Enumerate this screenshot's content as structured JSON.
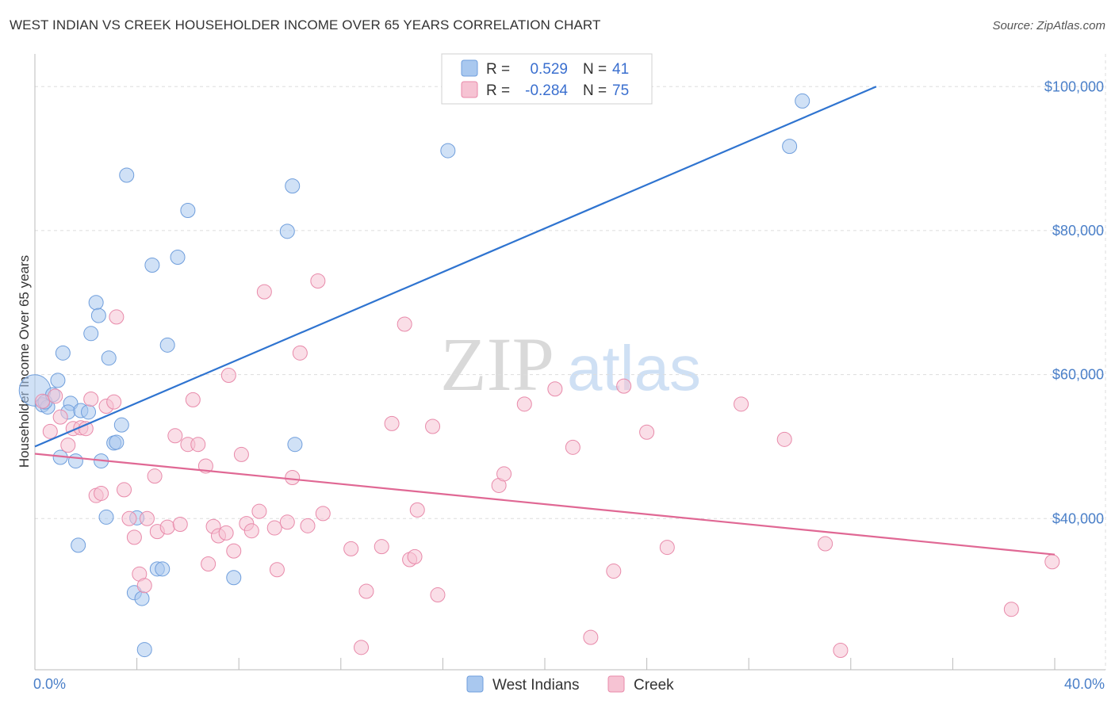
{
  "title": "WEST INDIAN VS CREEK HOUSEHOLDER INCOME OVER 65 YEARS CORRELATION CHART",
  "source": "Source: ZipAtlas.com",
  "watermark": {
    "zip": "ZIP",
    "atlas": "atlas"
  },
  "colors": {
    "blue_fill": "#a9c8ef",
    "blue_stroke": "#6f9edc",
    "blue_line": "#2f74d0",
    "pink_fill": "#f6c3d3",
    "pink_stroke": "#e88aaa",
    "pink_line": "#e06894",
    "grid": "#dddddd",
    "tick_text": "#4a7fc8"
  },
  "legend": {
    "rows": [
      {
        "r_label": "R =",
        "r_value": "0.529",
        "n_label": "N =",
        "n_value": "41"
      },
      {
        "r_label": "R =",
        "r_value": "-0.284",
        "n_label": "N =",
        "n_value": "75"
      }
    ]
  },
  "chart_data": {
    "type": "scatter",
    "title": "WEST INDIAN VS CREEK HOUSEHOLDER INCOME OVER 65 YEARS CORRELATION CHART",
    "xlabel": "",
    "ylabel": "Householder Income Over 65 years",
    "xlim": [
      0,
      40
    ],
    "ylim": [
      19000,
      103000
    ],
    "x_tick_labels": {
      "left": "0.0%",
      "right": "40.0%"
    },
    "y_ticks": [
      {
        "value": 100000,
        "label": "$100,000"
      },
      {
        "value": 80000,
        "label": "$80,000"
      },
      {
        "value": 60000,
        "label": "$60,000"
      },
      {
        "value": 40000,
        "label": "$40,000"
      }
    ],
    "series": [
      {
        "name": "West Indians",
        "r": 0.529,
        "n": 41,
        "trend": {
          "x0": 0,
          "y0": 50000,
          "x1": 33,
          "y1": 100000
        },
        "points": [
          [
            0,
            57800,
            2.2
          ],
          [
            0.3,
            55800,
            1
          ],
          [
            0.5,
            55500,
            1
          ],
          [
            0.4,
            56200,
            1
          ],
          [
            0.7,
            57200,
            1
          ],
          [
            0.9,
            59200,
            1
          ],
          [
            1.1,
            63000,
            1
          ],
          [
            1.0,
            48500,
            1
          ],
          [
            1.4,
            56000,
            1
          ],
          [
            1.3,
            54800,
            1
          ],
          [
            1.6,
            48000,
            1
          ],
          [
            1.8,
            55000,
            1
          ],
          [
            2.1,
            54800,
            1
          ],
          [
            2.2,
            65700,
            1
          ],
          [
            2.4,
            70000,
            1
          ],
          [
            2.5,
            68200,
            1
          ],
          [
            2.6,
            48000,
            1
          ],
          [
            2.8,
            40200,
            1
          ],
          [
            2.9,
            62300,
            1
          ],
          [
            3.1,
            50500,
            1
          ],
          [
            3.2,
            50600,
            1
          ],
          [
            3.4,
            53000,
            1
          ],
          [
            3.6,
            87700,
            1
          ],
          [
            3.9,
            29700,
            1
          ],
          [
            4.0,
            40100,
            1
          ],
          [
            4.2,
            28900,
            1
          ],
          [
            4.3,
            21800,
            1
          ],
          [
            4.6,
            75200,
            1
          ],
          [
            4.8,
            33000,
            1
          ],
          [
            5.0,
            33000,
            1
          ],
          [
            5.2,
            64100,
            1
          ],
          [
            5.6,
            76300,
            1
          ],
          [
            6.0,
            82800,
            1
          ],
          [
            7.8,
            31800,
            1
          ],
          [
            9.9,
            79900,
            1
          ],
          [
            10.1,
            86200,
            1
          ],
          [
            10.2,
            50300,
            1
          ],
          [
            16.2,
            91100,
            1
          ],
          [
            29.6,
            91700,
            1
          ],
          [
            30.1,
            98000,
            1
          ],
          [
            1.7,
            36300,
            1
          ]
        ]
      },
      {
        "name": "Creek",
        "r": -0.284,
        "n": 75,
        "trend": {
          "x0": 0,
          "y0": 49000,
          "x1": 40,
          "y1": 35000
        },
        "points": [
          [
            0.3,
            56300,
            1
          ],
          [
            0.6,
            52100,
            1
          ],
          [
            0.8,
            57000,
            1
          ],
          [
            1.0,
            54100,
            1
          ],
          [
            1.3,
            50200,
            1
          ],
          [
            1.5,
            52500,
            1
          ],
          [
            1.8,
            52600,
            1
          ],
          [
            2.0,
            52500,
            1
          ],
          [
            2.2,
            56600,
            1
          ],
          [
            2.4,
            43200,
            1
          ],
          [
            2.6,
            43500,
            1
          ],
          [
            2.8,
            55600,
            1
          ],
          [
            3.1,
            56200,
            1
          ],
          [
            3.2,
            68000,
            1
          ],
          [
            3.5,
            44000,
            1
          ],
          [
            3.7,
            40000,
            1
          ],
          [
            3.9,
            37400,
            1
          ],
          [
            4.1,
            32300,
            1
          ],
          [
            4.3,
            30700,
            1
          ],
          [
            4.7,
            45900,
            1
          ],
          [
            4.8,
            38200,
            1
          ],
          [
            5.2,
            38800,
            1
          ],
          [
            5.5,
            51500,
            1
          ],
          [
            5.7,
            39200,
            1
          ],
          [
            6.0,
            50300,
            1
          ],
          [
            6.2,
            56500,
            1
          ],
          [
            6.4,
            50300,
            1
          ],
          [
            6.7,
            47300,
            1
          ],
          [
            6.8,
            33700,
            1
          ],
          [
            7.0,
            38900,
            1
          ],
          [
            7.2,
            37600,
            1
          ],
          [
            7.5,
            38000,
            1
          ],
          [
            7.6,
            59900,
            1
          ],
          [
            7.8,
            35500,
            1
          ],
          [
            8.1,
            48900,
            1
          ],
          [
            8.3,
            39300,
            1
          ],
          [
            8.5,
            38300,
            1
          ],
          [
            8.8,
            41000,
            1
          ],
          [
            9.0,
            71500,
            1
          ],
          [
            9.4,
            38700,
            1
          ],
          [
            9.5,
            32900,
            1
          ],
          [
            9.9,
            39500,
            1
          ],
          [
            10.1,
            45700,
            1
          ],
          [
            10.4,
            63000,
            1
          ],
          [
            10.7,
            39000,
            1
          ],
          [
            11.1,
            73000,
            1
          ],
          [
            11.3,
            40700,
            1
          ],
          [
            12.4,
            35800,
            1
          ],
          [
            12.8,
            22100,
            1
          ],
          [
            13.0,
            29900,
            1
          ],
          [
            13.6,
            36100,
            1
          ],
          [
            14.0,
            53200,
            1
          ],
          [
            14.5,
            67000,
            1
          ],
          [
            14.7,
            34300,
            1
          ],
          [
            14.9,
            34700,
            1
          ],
          [
            15.0,
            41200,
            1
          ],
          [
            15.6,
            52800,
            1
          ],
          [
            15.8,
            29400,
            1
          ],
          [
            18.2,
            44600,
            1
          ],
          [
            18.4,
            46200,
            1
          ],
          [
            19.2,
            55900,
            1
          ],
          [
            20.4,
            58000,
            1
          ],
          [
            21.1,
            49900,
            1
          ],
          [
            21.8,
            23500,
            1
          ],
          [
            22.7,
            32700,
            1
          ],
          [
            23.1,
            58400,
            1
          ],
          [
            24.0,
            52000,
            1
          ],
          [
            24.8,
            36000,
            1
          ],
          [
            27.7,
            55900,
            1
          ],
          [
            29.4,
            51000,
            1
          ],
          [
            31.0,
            36500,
            1
          ],
          [
            31.6,
            21700,
            1
          ],
          [
            38.3,
            27400,
            1
          ],
          [
            39.9,
            34000,
            1
          ],
          [
            4.4,
            40000,
            1
          ]
        ]
      }
    ]
  }
}
